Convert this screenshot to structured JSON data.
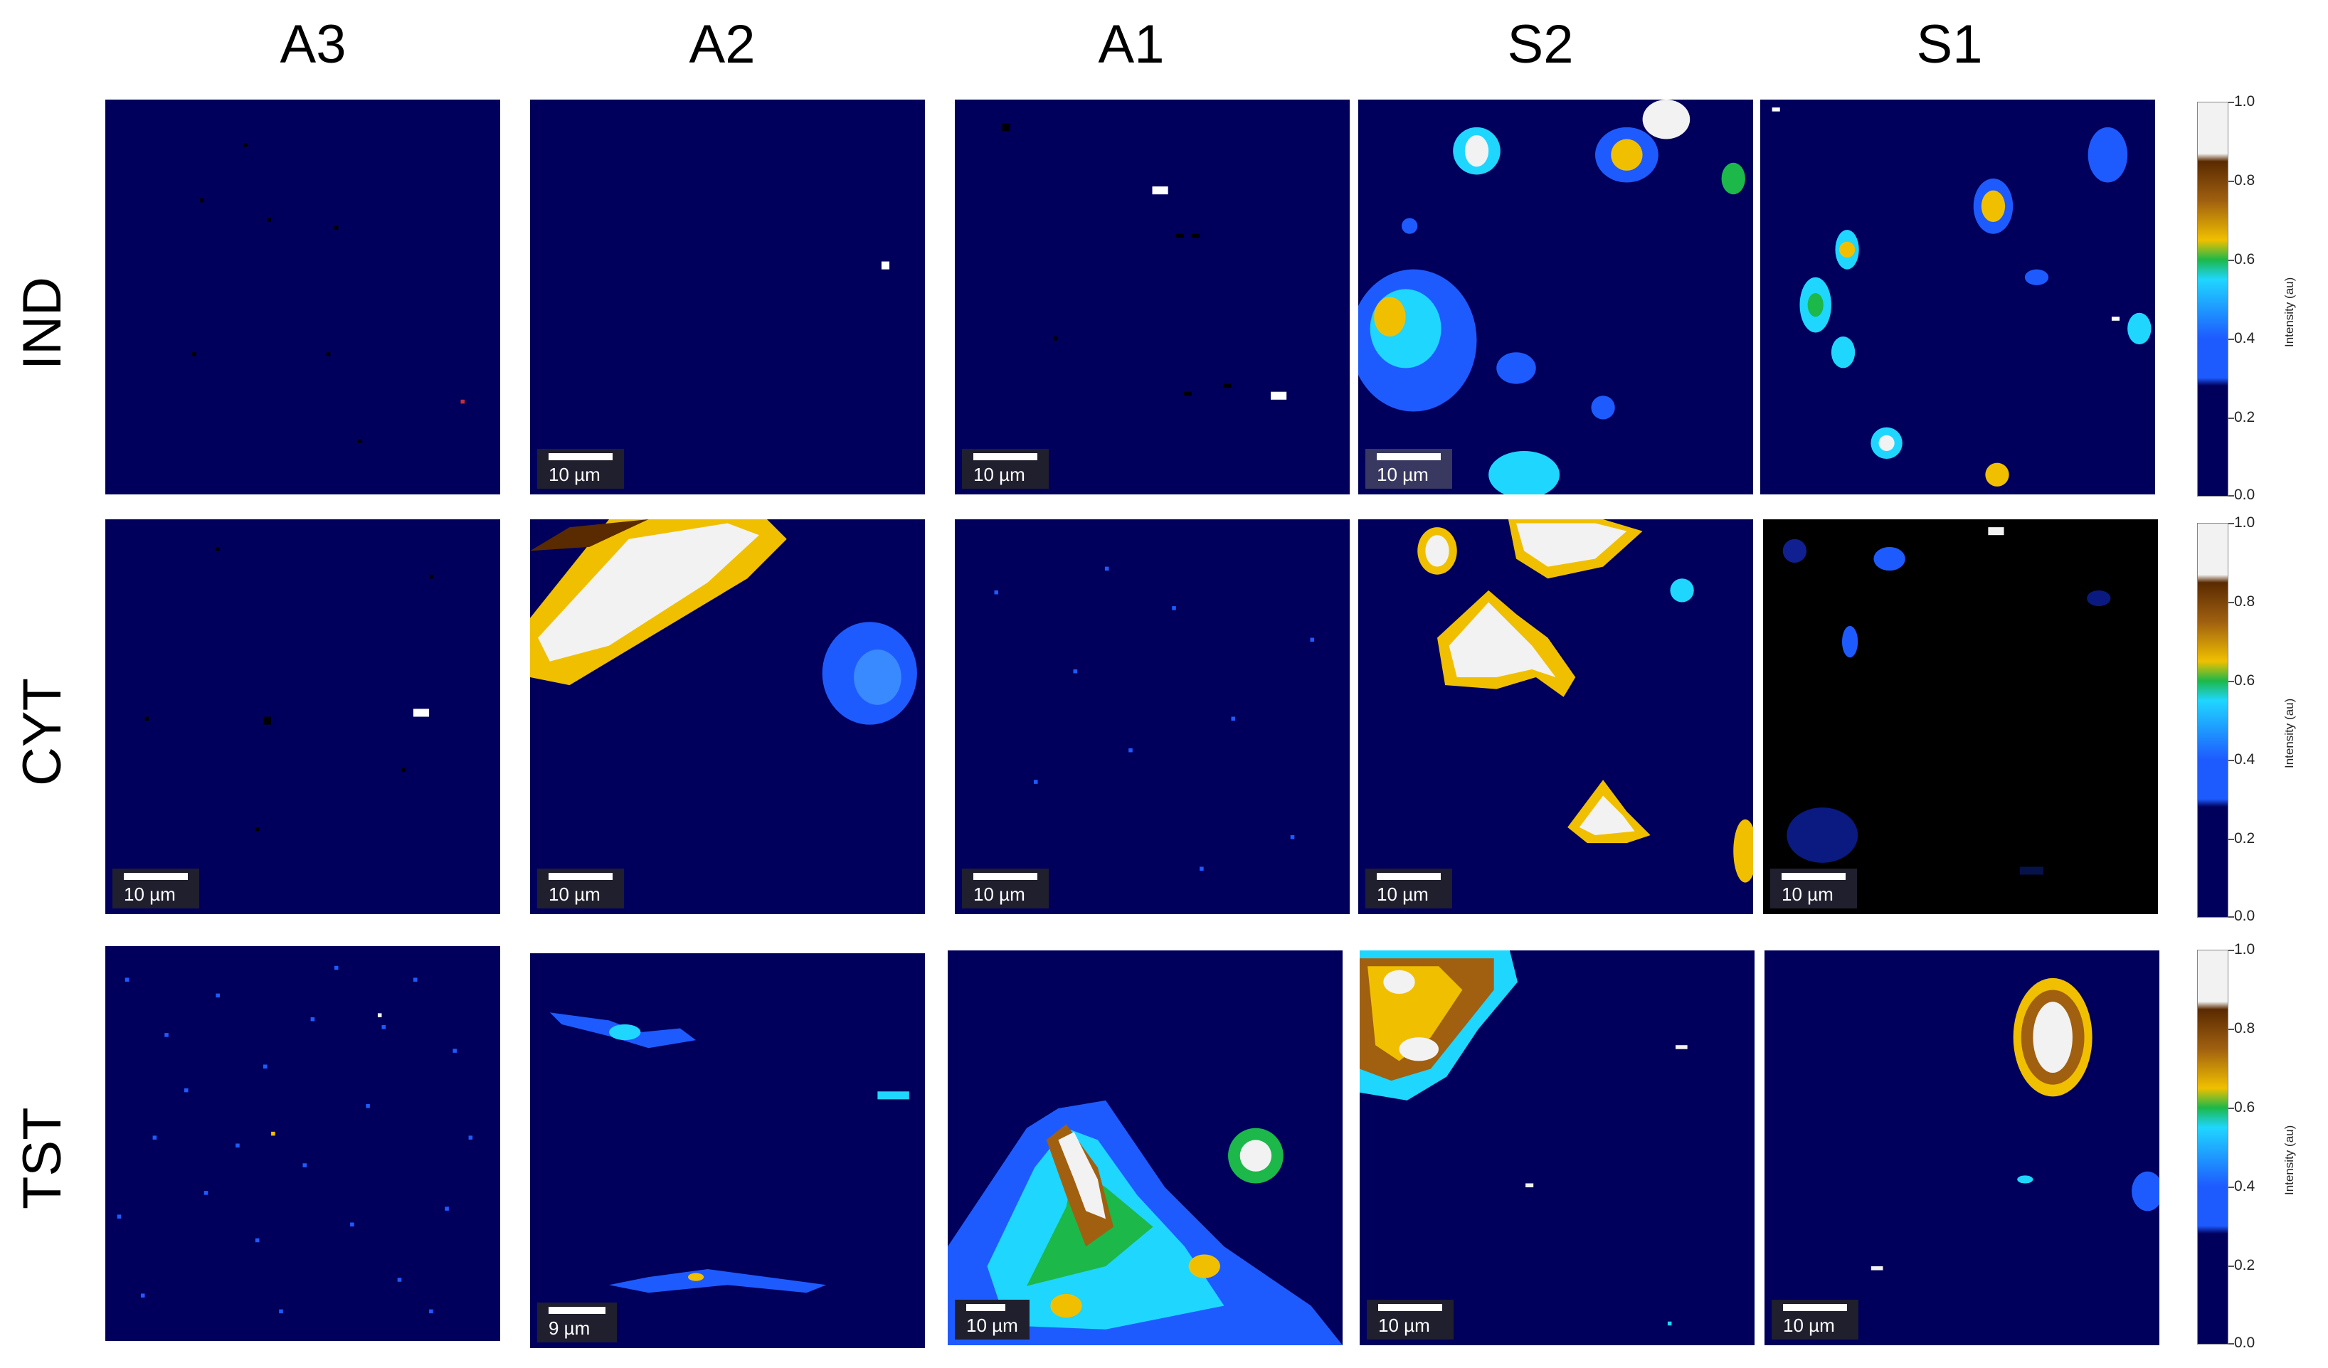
{
  "columns": [
    "A3",
    "A2",
    "A1",
    "S2",
    "S1"
  ],
  "rows": [
    "IND",
    "CYT",
    "TST"
  ],
  "scalebars": {
    "IND": {
      "A3": "",
      "A2": "10 µm",
      "A1": "10 µm",
      "S2": "10 µm",
      "S1": ""
    },
    "CYT": {
      "A3": "10 µm",
      "A2": "10 µm",
      "A1": "10 µm",
      "S2": "10 µm",
      "S1": "10 µm"
    },
    "TST": {
      "A3": "",
      "A2": "9 µm",
      "A1": "10 µm",
      "S2": "10 µm",
      "S1": "10 µm"
    }
  },
  "colorbar": {
    "label": "Intensity (au)",
    "ticks": [
      "1.0",
      "0.8",
      "0.6",
      "0.4",
      "0.2",
      "0.0"
    ],
    "colors": {
      "low": "#00005c",
      "blue": "#1e5bff",
      "cyan": "#1fd6ff",
      "green": "#1cb84a",
      "yellow": "#f0c000",
      "brown": "#5a2a00",
      "white": "#f2f2f2"
    }
  }
}
